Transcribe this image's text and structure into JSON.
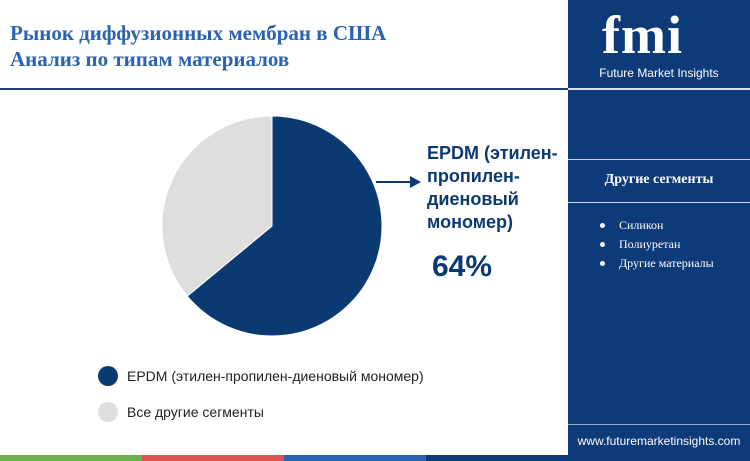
{
  "header": {
    "title_line1": "Рынок диффузионных мембран в США",
    "title_line2": "Анализ по типам материалов"
  },
  "chart_data": {
    "type": "pie",
    "slices": [
      {
        "label": "EPDM (этилен-пропилен-диеновый мономер)",
        "value": 64,
        "color": "#0b3a73"
      },
      {
        "label": "Все другие сегменты",
        "value": 36,
        "color": "#dedede"
      }
    ],
    "callout": {
      "label_lines": [
        "EPDM (этилен-",
        "пропилен-",
        "диеновый",
        "мономер)"
      ],
      "value": "64%"
    },
    "legend": [
      {
        "label": "EPDM (этилен-пропилен-диеновый мономер)",
        "color": "#0b3a73"
      },
      {
        "label": "Все другие сегменты",
        "color": "#dedede"
      }
    ]
  },
  "sidebar": {
    "logo": "fmi",
    "logo_subtitle": "Future Market Insights",
    "segments_title": "Другие сегменты",
    "segments": [
      "Силикон",
      "Полиуретан",
      "Другие материалы"
    ],
    "website": "www.futuremarketinsights.com"
  },
  "colors": {
    "accent": "#2b63b3",
    "sidebar_bg": "#0d3a78",
    "bottom_bar": [
      "#6ab04c",
      "#d9534f",
      "#2b63b3",
      "#0d3a78"
    ]
  }
}
